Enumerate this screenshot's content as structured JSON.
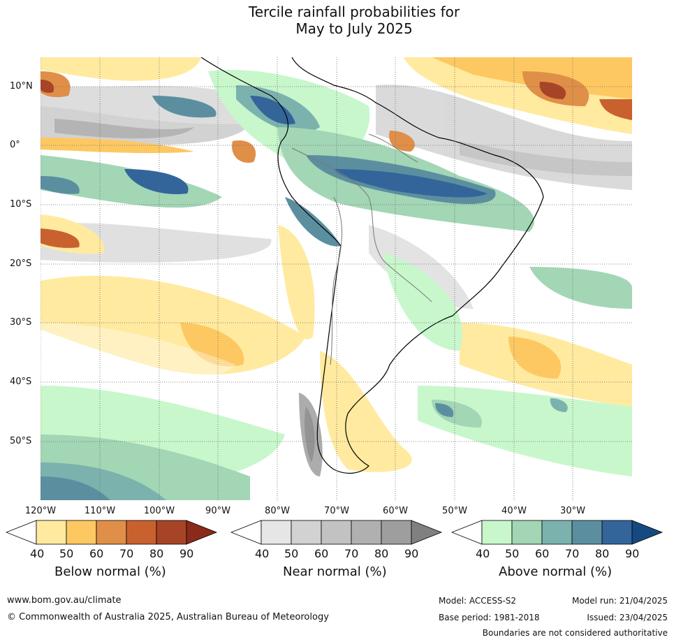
{
  "title": {
    "line1": "Tercile rainfall probabilities for",
    "line2": "May to July 2025"
  },
  "map": {
    "lat_labels": [
      "10°N",
      "0°",
      "10°S",
      "20°S",
      "30°S",
      "40°S",
      "50°S"
    ],
    "lon_labels": [
      "120°W",
      "110°W",
      "100°W",
      "90°W",
      "80°W",
      "70°W",
      "60°W",
      "50°W",
      "40°W",
      "30°W"
    ]
  },
  "legend": {
    "below": {
      "title": "Below normal (%)",
      "ticks": [
        "40",
        "50",
        "60",
        "70",
        "80",
        "90"
      ],
      "colors": [
        "#ffffff",
        "#ffeaa0",
        "#fdc862",
        "#e08f48",
        "#c9612f",
        "#a84426",
        "#8b2a1b"
      ]
    },
    "near": {
      "title": "Near normal (%)",
      "ticks": [
        "40",
        "50",
        "60",
        "70",
        "80",
        "90"
      ],
      "colors": [
        "#ffffff",
        "#e6e6e6",
        "#d2d2d2",
        "#c2c2c2",
        "#b0b0b0",
        "#9e9e9e",
        "#808080"
      ]
    },
    "above": {
      "title": "Above normal (%)",
      "ticks": [
        "40",
        "50",
        "60",
        "70",
        "80",
        "90"
      ],
      "colors": [
        "#ffffff",
        "#c8f7cc",
        "#a2d6b5",
        "#7cb2ad",
        "#5b8fa0",
        "#33659a",
        "#154a80"
      ]
    }
  },
  "footer": {
    "website": "www.bom.gov.au/climate",
    "copyright": "© Commonwealth of Australia 2025, Australian Bureau of Meteorology",
    "model": "Model: ACCESS-S2",
    "base_period": "Base period: 1981-2018",
    "model_run": "Model run: 21/04/2025",
    "issued": "Issued: 23/04/2025",
    "boundaries": "Boundaries are not considered authoritative"
  }
}
